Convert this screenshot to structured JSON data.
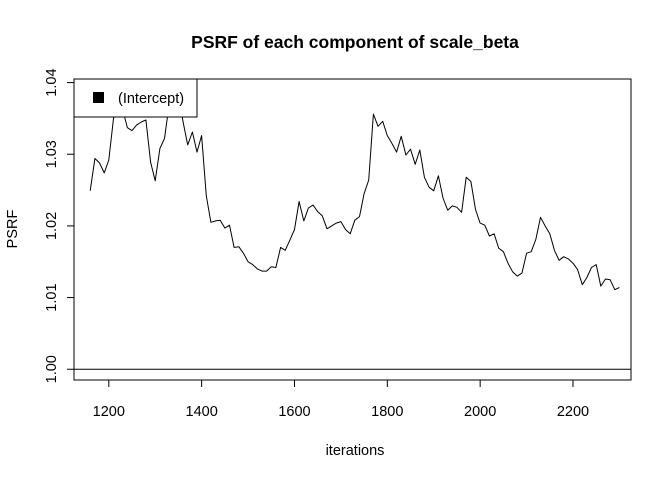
{
  "chart_data": {
    "type": "line",
    "title": "PSRF of each component of scale_beta",
    "xlabel": "iterations",
    "ylabel": "PSRF",
    "xlim": [
      1125,
      2325
    ],
    "ylim": [
      0.9985,
      1.0405
    ],
    "xticks": [
      1200,
      1400,
      1600,
      1800,
      2000,
      2200
    ],
    "yticks": [
      1.0,
      1.01,
      1.02,
      1.03,
      1.04
    ],
    "ytick_labels": [
      "1.00",
      "1.01",
      "1.02",
      "1.03",
      "1.04"
    ],
    "reference_line": 1.0,
    "legend": {
      "position": "top-left",
      "entries": [
        "(Intercept)"
      ]
    },
    "series": [
      {
        "name": "(Intercept)",
        "color": "#000000",
        "x": [
          1160,
          1170,
          1180,
          1190,
          1200,
          1210,
          1220,
          1230,
          1240,
          1250,
          1260,
          1270,
          1280,
          1290,
          1300,
          1310,
          1320,
          1330,
          1340,
          1350,
          1360,
          1370,
          1380,
          1390,
          1400,
          1410,
          1420,
          1430,
          1440,
          1450,
          1460,
          1470,
          1480,
          1490,
          1500,
          1510,
          1520,
          1530,
          1540,
          1550,
          1560,
          1570,
          1580,
          1590,
          1600,
          1610,
          1620,
          1630,
          1640,
          1650,
          1660,
          1670,
          1680,
          1690,
          1700,
          1710,
          1720,
          1730,
          1740,
          1750,
          1760,
          1770,
          1780,
          1790,
          1800,
          1810,
          1820,
          1830,
          1840,
          1850,
          1860,
          1870,
          1880,
          1890,
          1900,
          1910,
          1920,
          1930,
          1940,
          1950,
          1960,
          1970,
          1980,
          1990,
          2000,
          2010,
          2020,
          2030,
          2040,
          2050,
          2060,
          2070,
          2080,
          2090,
          2100,
          2110,
          2120,
          2130,
          2140,
          2150,
          2160,
          2170,
          2180,
          2190,
          2200,
          2210,
          2220,
          2230,
          2240,
          2250,
          2260,
          2270,
          2280,
          2290,
          2300
        ],
        "y": [
          1.0249,
          1.0294,
          1.0288,
          1.0274,
          1.0292,
          1.035,
          1.0365,
          1.0362,
          1.0337,
          1.0333,
          1.0341,
          1.0345,
          1.0348,
          1.0289,
          1.0263,
          1.0308,
          1.0322,
          1.037,
          1.0392,
          1.0385,
          1.0345,
          1.0313,
          1.0331,
          1.0303,
          1.0326,
          1.0242,
          1.0205,
          1.0207,
          1.0208,
          1.0197,
          1.0201,
          1.017,
          1.0171,
          1.0162,
          1.015,
          1.0146,
          1.014,
          1.0137,
          1.0137,
          1.0143,
          1.0142,
          1.017,
          1.0166,
          1.018,
          1.0195,
          1.0234,
          1.0207,
          1.0225,
          1.0229,
          1.022,
          1.0214,
          1.0196,
          1.02,
          1.0204,
          1.0206,
          1.0195,
          1.0189,
          1.0208,
          1.0213,
          1.0245,
          1.0264,
          1.0356,
          1.0339,
          1.0346,
          1.0326,
          1.0315,
          1.0303,
          1.0325,
          1.0299,
          1.0307,
          1.0286,
          1.0306,
          1.0268,
          1.0254,
          1.0249,
          1.027,
          1.0239,
          1.0222,
          1.0228,
          1.0226,
          1.0219,
          1.0268,
          1.0262,
          1.0223,
          1.0204,
          1.0201,
          1.0186,
          1.0189,
          1.0169,
          1.0164,
          1.0148,
          1.0136,
          1.013,
          1.0134,
          1.0162,
          1.0164,
          1.0181,
          1.0212,
          1.02,
          1.0189,
          1.0166,
          1.0152,
          1.0157,
          1.0154,
          1.0148,
          1.0139,
          1.0118,
          1.0128,
          1.0142,
          1.0146,
          1.0116,
          1.0126,
          1.0125,
          1.0111,
          1.0114
        ]
      }
    ]
  }
}
